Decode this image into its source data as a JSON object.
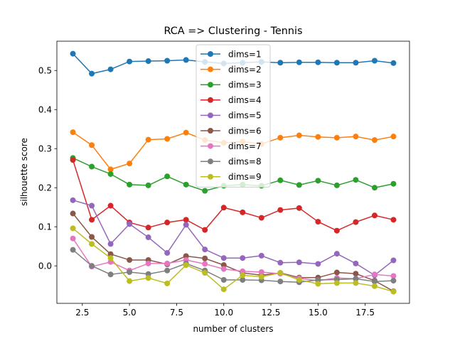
{
  "chart_data": {
    "type": "line",
    "title": "RCA => Clustering - Tennis",
    "xlabel": "number of clusters",
    "ylabel": "silhouette score",
    "xlim": [
      1.15,
      19.85
    ],
    "ylim": [
      -0.096,
      0.575
    ],
    "xticks": [
      2.5,
      5.0,
      7.5,
      10.0,
      12.5,
      15.0,
      17.5
    ],
    "xtick_labels": [
      "2.5",
      "5.0",
      "7.5",
      "10.0",
      "12.5",
      "15.0",
      "17.5"
    ],
    "yticks": [
      0.0,
      0.1,
      0.2,
      0.3,
      0.4,
      0.5
    ],
    "ytick_labels": [
      "0.0",
      "0.1",
      "0.2",
      "0.3",
      "0.4",
      "0.5"
    ],
    "grid": false,
    "legend_position": "upper center",
    "x": [
      2,
      3,
      4,
      5,
      6,
      7,
      8,
      9,
      10,
      11,
      12,
      13,
      14,
      15,
      16,
      17,
      18,
      19
    ],
    "series": [
      {
        "name": "dims=1",
        "color": "#1f77b4",
        "values": [
          0.543,
          0.492,
          0.503,
          0.523,
          0.524,
          0.525,
          0.527,
          0.522,
          0.518,
          0.52,
          0.522,
          0.52,
          0.521,
          0.521,
          0.52,
          0.52,
          0.525,
          0.519
        ]
      },
      {
        "name": "dims=2",
        "color": "#ff7f0e",
        "values": [
          0.342,
          0.309,
          0.247,
          0.262,
          0.323,
          0.325,
          0.341,
          0.322,
          0.315,
          0.318,
          0.312,
          0.328,
          0.334,
          0.33,
          0.328,
          0.331,
          0.322,
          0.331
        ]
      },
      {
        "name": "dims=3",
        "color": "#2ca02c",
        "values": [
          0.276,
          0.254,
          0.235,
          0.208,
          0.206,
          0.229,
          0.208,
          0.192,
          0.205,
          0.208,
          0.205,
          0.219,
          0.207,
          0.218,
          0.206,
          0.22,
          0.2,
          0.21
        ]
      },
      {
        "name": "dims=4",
        "color": "#d62728",
        "values": [
          0.271,
          0.118,
          0.154,
          0.111,
          0.098,
          0.111,
          0.118,
          0.092,
          0.149,
          0.137,
          0.123,
          0.143,
          0.148,
          0.113,
          0.09,
          0.112,
          0.129,
          0.118
        ]
      },
      {
        "name": "dims=5",
        "color": "#9467bd",
        "values": [
          0.168,
          0.154,
          0.056,
          0.107,
          0.073,
          0.033,
          0.105,
          0.042,
          0.02,
          0.02,
          0.026,
          0.008,
          0.009,
          0.005,
          0.031,
          0.006,
          -0.024,
          0.014
        ]
      },
      {
        "name": "dims=6",
        "color": "#8c564b",
        "values": [
          0.134,
          0.074,
          0.03,
          0.015,
          0.015,
          0.004,
          0.025,
          0.019,
          0.002,
          -0.018,
          -0.024,
          -0.018,
          -0.03,
          -0.03,
          -0.017,
          -0.02,
          -0.038,
          -0.065
        ]
      },
      {
        "name": "dims=7",
        "color": "#e377c2",
        "values": [
          0.07,
          -0.002,
          0.01,
          -0.012,
          0.006,
          0.006,
          0.015,
          0.005,
          -0.008,
          -0.014,
          -0.016,
          -0.02,
          -0.032,
          -0.038,
          -0.031,
          -0.033,
          -0.022,
          -0.026
        ]
      },
      {
        "name": "dims=8",
        "color": "#7f7f7f",
        "values": [
          0.041,
          0.0,
          -0.022,
          -0.016,
          -0.021,
          -0.012,
          0.006,
          -0.012,
          -0.036,
          -0.036,
          -0.037,
          -0.04,
          -0.042,
          -0.036,
          -0.035,
          -0.033,
          -0.04,
          -0.038
        ]
      },
      {
        "name": "dims=9",
        "color": "#bcbd22",
        "values": [
          0.096,
          0.056,
          0.02,
          -0.039,
          -0.031,
          -0.045,
          0.002,
          -0.018,
          -0.06,
          -0.024,
          -0.028,
          -0.018,
          -0.036,
          -0.046,
          -0.044,
          -0.044,
          -0.052,
          -0.066
        ]
      }
    ]
  }
}
